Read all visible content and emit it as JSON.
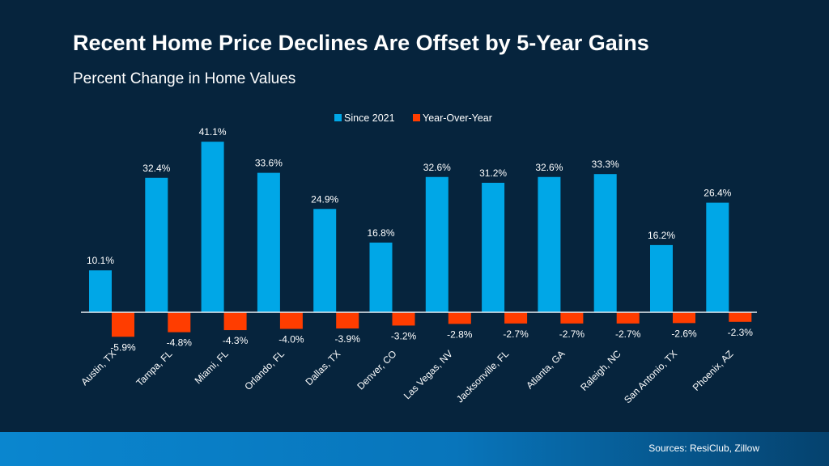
{
  "chart_data": {
    "type": "bar",
    "title": "Recent Home Price Declines Are Offset by 5-Year Gains",
    "subtitle": "Percent Change in Home Values",
    "categories": [
      "Austin, TX",
      "Tampa, FL",
      "Miami, FL",
      "Orlando, FL",
      "Dallas, TX",
      "Denver, CO",
      "Las Vegas, NV",
      "Jacksonville, FL",
      "Atlanta, GA",
      "Raleigh, NC",
      "San Antonio, TX",
      "Phoenix, AZ"
    ],
    "series": [
      {
        "name": "Since 2021",
        "color": "#00a7e7",
        "values": [
          10.1,
          32.4,
          41.1,
          33.6,
          24.9,
          16.8,
          32.6,
          31.2,
          32.6,
          33.3,
          16.2,
          26.4
        ]
      },
      {
        "name": "Year-Over-Year",
        "color": "#ff3d00",
        "values": [
          -5.9,
          -4.8,
          -4.3,
          -4.0,
          -3.9,
          -3.2,
          -2.8,
          -2.7,
          -2.7,
          -2.7,
          -2.6,
          -2.3
        ]
      }
    ],
    "value_suffix": "%",
    "legend": "top-center",
    "grid": false,
    "ylim": [
      -6,
      42
    ]
  },
  "footer": {
    "source": "Sources: ResiClub, Zillow"
  }
}
